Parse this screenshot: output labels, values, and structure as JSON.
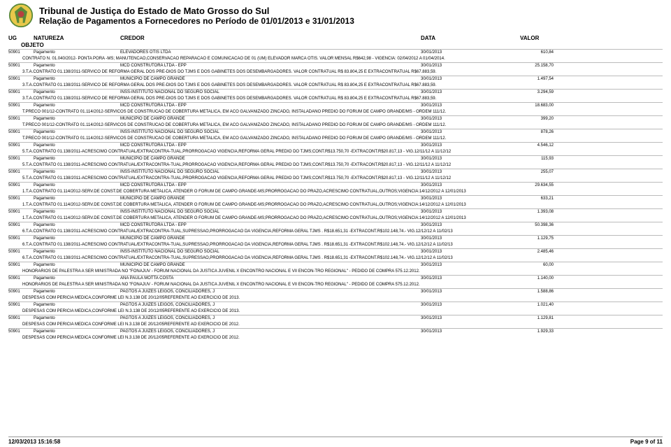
{
  "header": {
    "title": "Tribunal de Justiça do Estado de Mato Grosso do Sul",
    "subtitle": "Relação de Pagamentos a Fornecedores no Período de 01/01/2013 e 31/01/2013"
  },
  "columns": {
    "ug": "UG",
    "natureza": "NATUREZA",
    "credor": "CREDOR",
    "data": "DATA",
    "valor": "VALOR",
    "objeto": "OBJETO"
  },
  "typography": {
    "title_fontsize": 13,
    "subtitle_fontsize": 12,
    "header_fontsize": 8,
    "body_fontsize": 6
  },
  "colors": {
    "background": "#ffffff",
    "text": "#000000",
    "row_border": "#bbbbbb",
    "emblem_green": "#5a8a3a",
    "emblem_yellow": "#e8c84a",
    "emblem_red": "#b84040"
  },
  "rows": [
    {
      "ug": "50901",
      "nat": "Pagamento",
      "cred": "ELEVADORES OTIS LTDA",
      "data": "30/01/2013",
      "valor": "610,84",
      "obj": "CONTRATO N. 01.040/2012- PONTA PORA -MS; MANUTENCAO,CONSERVACAO REPARACAO E COMUNICACAO DE 01 (UM) ELEVADOR MARCA OTIS. VALOR MENSAL R$642,98 - VIGENCIA: 02/04/2012 A 01/04/2014."
    },
    {
      "ug": "50901",
      "nat": "Pagamento",
      "cred": "MCD CONSTRUTORA LTDA - EPP",
      "data": "30/01/2013",
      "valor": "25.158,70",
      "obj": "3.T.A.CONTRATO 01.138/2011-SERVICO DE REFORMA GERAL DOS PRE-DIOS DO TJMS E DOS GABINETES DOS DESEMBARGADORES.     VALOR CONTRATUAL R$ 83.804,25 E EXTRACONTRATUAL R$67.883,59."
    },
    {
      "ug": "50901",
      "nat": "Pagamento",
      "cred": "MUNICIPIO DE CAMPO GRANDE",
      "data": "30/01/2013",
      "valor": "1.497,54",
      "obj": "3.T.A.CONTRATO 01.138/2011-SERVICO DE REFORMA GERAL DOS PRE-DIOS DO TJMS E DOS GABINETES DOS DESEMBARGADORES.     VALOR CONTRATUAL R$ 83.804,25 E EXTRACONTRATUAL R$67.883,59."
    },
    {
      "ug": "50901",
      "nat": "Pagamento",
      "cred": "INSS-INSTITUTO NACIONAL DO SEGURO SOCIAL",
      "data": "30/01/2013",
      "valor": "3.294,59",
      "obj": "3.T.A.CONTRATO 01.138/2011-SERVICO DE REFORMA GERAL DOS PRE-DIOS DO TJMS E DOS GABINETES DOS DESEMBARGADORES.     VALOR CONTRATUAL R$ 83.804,25 E EXTRACONTRATUAL R$67.883,59."
    },
    {
      "ug": "50901",
      "nat": "Pagamento",
      "cred": "MCD CONSTRUTORA LTDA - EPP",
      "data": "30/01/2013",
      "valor": "18.683,00",
      "obj": "T.PRECO 001/12-CONTRATO 01.114/2012-SERVICOS DE CONSTRUCAO  DE COBERTURA METALICA, EM ACO GALVANIZADO ZINCADO, INSTALADANO PREDIO DO FORUM DE CAMPO GRANDE/MS - ORDEM 111/12."
    },
    {
      "ug": "50901",
      "nat": "Pagamento",
      "cred": "MUNICIPIO DE CAMPO GRANDE",
      "data": "30/01/2013",
      "valor": "399,20",
      "obj": "T.PRECO 001/12-CONTRATO 01.114/2012-SERVICOS DE CONSTRUCAO  DE COBERTURA METALICA, EM ACO GALVANIZADO ZINCADO, INSTALADANO PREDIO DO FORUM DE CAMPO GRANDE/MS - ORDEM 111/12."
    },
    {
      "ug": "50901",
      "nat": "Pagamento",
      "cred": "INSS-INSTITUTO NACIONAL DO SEGURO SOCIAL",
      "data": "30/01/2013",
      "valor": "878,26",
      "obj": "T.PRECO 001/12-CONTRATO 01.114/2012-SERVICOS DE CONSTRUCAO  DE COBERTURA METALICA, EM ACO GALVANIZADO ZINCADO, INSTALADANO PREDIO DO FORUM DE CAMPO GRANDE/MS - ORDEM 111/12."
    },
    {
      "ug": "50901",
      "nat": "Pagamento",
      "cred": "MCD CONSTRUTORA LTDA - EPP",
      "data": "30/01/2013",
      "valor": "4.546,12",
      "obj": "5.T.A.CONTRATO 01.138/2011-ACRESCIMO CONTRATUAL/EXTRACONTRA-TUAL,PRORROGACAO VIGENCIA,REFORMA GERAL PREDIO DO TJMS;CONT.R$13.750,70 -EXTRACONT.R$20.817,13 - VIG.12/11/12 A 11/12/12"
    },
    {
      "ug": "50901",
      "nat": "Pagamento",
      "cred": "MUNICIPIO DE CAMPO GRANDE",
      "data": "30/01/2013",
      "valor": "115,93",
      "obj": "5.T.A.CONTRATO 01.138/2011-ACRESCIMO CONTRATUAL/EXTRACONTRA-TUAL,PRORROGACAO VIGENCIA,REFORMA GERAL PREDIO DO TJMS;CONT.R$13.750,70 -EXTRACONT.R$20.817,13 - VIG.12/11/12 A 11/12/12"
    },
    {
      "ug": "50901",
      "nat": "Pagamento",
      "cred": "INSS-INSTITUTO NACIONAL DO SEGURO SOCIAL",
      "data": "30/01/2013",
      "valor": "255,07",
      "obj": "5.T.A.CONTRATO 01.138/2011-ACRESCIMO CONTRATUAL/EXTRACONTRA-TUAL,PRORROGACAO VIGENCIA,REFORMA GERAL PREDIO DO TJMS;CONT.R$13.750,70 -EXTRACONT.R$20.817,13 - VIG.12/11/12 A 11/12/12"
    },
    {
      "ug": "50901",
      "nat": "Pagamento",
      "cred": "MCD CONSTRUTORA LTDA - EPP",
      "data": "30/01/2013",
      "valor": "29.634,55",
      "obj": "1.T.A.CONTRATO 01.114/2012-SERV.DE CONST.DE COBERTURA METALICA, ATENDER O FORUM DE CAMPO GRANDE-MS;PRORROGACAO DO PRAZO,ACRESCIMO CONTRATUAL,OUTROS;VIGENCIA:14/12/2012 A 12/01/2013"
    },
    {
      "ug": "50901",
      "nat": "Pagamento",
      "cred": "MUNICIPIO DE CAMPO GRANDE",
      "data": "30/01/2013",
      "valor": "633,21",
      "obj": "1.T.A.CONTRATO 01.114/2012-SERV.DE CONST.DE COBERTURA METALICA, ATENDER O FORUM DE CAMPO GRANDE-MS;PRORROGACAO DO PRAZO,ACRESCIMO CONTRATUAL,OUTROS;VIGENCIA:14/12/2012 A 12/01/2013"
    },
    {
      "ug": "50901",
      "nat": "Pagamento",
      "cred": "INSS-INSTITUTO NACIONAL DO SEGURO SOCIAL",
      "data": "30/01/2013",
      "valor": "1.393,08",
      "obj": "1.T.A.CONTRATO 01.114/2012-SERV.DE CONST.DE COBERTURA METALICA, ATENDER O FORUM DE CAMPO GRANDE-MS;PRORROGACAO DO PRAZO,ACRESCIMO CONTRATUAL,OUTROS;VIGENCIA:14/12/2012 A 12/01/2013"
    },
    {
      "ug": "50901",
      "nat": "Pagamento",
      "cred": "MCD CONSTRUTORA LTDA - EPP",
      "data": "30/01/2013",
      "valor": "50.398,36",
      "obj": "6.T.A.CONTRATO 01.138/2011-ACRESCIMO CONTRATUAL/EXTRACONTRA-TUAL,SUPRESSAO,PRORROGACAO DA VIGENCIA,REFORMA GERAL TJMS . R$18.651,31 -EXTRACONT.R$102.148,74.- VIG.12/12/12 A 11/02/13"
    },
    {
      "ug": "50901",
      "nat": "Pagamento",
      "cred": "MUNICIPIO DE CAMPO GRANDE",
      "data": "30/01/2013",
      "valor": "1.129,75",
      "obj": "6.T.A.CONTRATO 01.138/2011-ACRESCIMO CONTRATUAL/EXTRACONTRA-TUAL,SUPRESSAO,PRORROGACAO DA VIGENCIA,REFORMA GERAL TJMS . R$18.651,31 -EXTRACONT.R$102.148,74.- VIG.12/12/12 A 11/02/13"
    },
    {
      "ug": "50901",
      "nat": "Pagamento",
      "cred": "INSS-INSTITUTO NACIONAL DO SEGURO SOCIAL",
      "data": "30/01/2013",
      "valor": "2.485,46",
      "obj": "6.T.A.CONTRATO 01.138/2011-ACRESCIMO CONTRATUAL/EXTRACONTRA-TUAL,SUPRESSAO,PRORROGACAO DA VIGENCIA,REFORMA GERAL TJMS . R$18.651,31 -EXTRACONT.R$102.148,74.- VIG.12/12/12 A 11/02/13"
    },
    {
      "ug": "50901",
      "nat": "Pagamento",
      "cred": "MUNICIPIO DE CAMPO GRANDE",
      "data": "30/01/2013",
      "valor": "60,00",
      "obj": "HONORARIOS DE PALESTRA A SER MINISTRADA NO \"FONAJUV - FORUM NACIONAL DA JUSTICA JUVENIL X ENCONTRO NACIONAL E VII ENCON-TRO REGIONAL\" - PEDIDO DE COMPRA 575.12.2012."
    },
    {
      "ug": "50901",
      "nat": "Pagamento",
      "cred": "ANA PAULA MOTTA COSTA",
      "data": "30/01/2013",
      "valor": "1.140,00",
      "obj": "HONORARIOS DE PALESTRA A SER MINISTRADA NO \"FONAJUV - FORUM NACIONAL DA JUSTICA JUVENIL X ENCONTRO NACIONAL E VII ENCON-TRO REGIONAL\" - PEDIDO DE COMPRA 575.12.2012."
    },
    {
      "ug": "50901",
      "nat": "Pagamento",
      "cred": "PAGTOS A JUIZES LEIGOS, CONCILIADORES, J",
      "data": "30/01/2013",
      "valor": "1.588,86",
      "obj": "DESPESAS COM PERICIA MEDICA,CONFORME LEI N.3.138 DE 20/12/05REFERENTE AO EXERCICIO DE 2013."
    },
    {
      "ug": "50901",
      "nat": "Pagamento",
      "cred": "PAGTOS A JUIZES LEIGOS, CONCILIADORES, J",
      "data": "30/01/2013",
      "valor": "1.021,40",
      "obj": "DESPESAS COM PERICIA MEDICA,CONFORME LEI N.3.138 DE 20/12/05REFERENTE AO EXERCICIO DE 2013."
    },
    {
      "ug": "50901",
      "nat": "Pagamento",
      "cred": "PAGTOS A JUIZES LEIGOS, CONCILIADORES, J",
      "data": "30/01/2013",
      "valor": "1.129,81",
      "obj": "DESPESAS COM PERICIA MEDICA CONFORME LEI N.3.138 DE 20/12/05REFERENTE AO EXERCICIO DE 2012."
    },
    {
      "ug": "50901",
      "nat": "Pagamento",
      "cred": "PAGTOS A JUIZES LEIGOS, CONCILIADORES, J",
      "data": "30/01/2013",
      "valor": "1.929,33",
      "obj": "DESPESAS COM PERICIA MEDICA CONFORME LEI N.3.138 DE 20/12/05REFERENTE AO EXERCICIO DE 2012."
    }
  ],
  "footer": {
    "timestamp": "12/03/2013 15:16:58",
    "page": "Page 9 of 11"
  }
}
